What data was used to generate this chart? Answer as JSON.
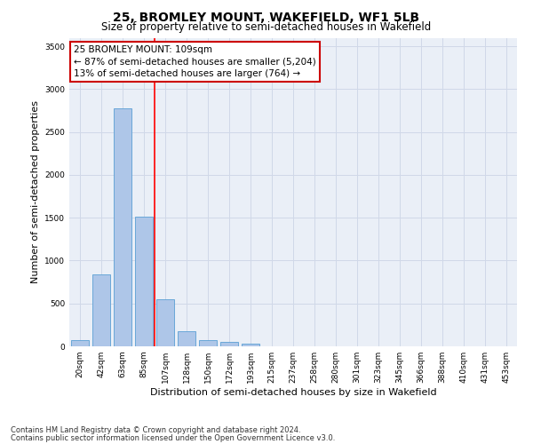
{
  "title": "25, BROMLEY MOUNT, WAKEFIELD, WF1 5LB",
  "subtitle": "Size of property relative to semi-detached houses in Wakefield",
  "xlabel": "Distribution of semi-detached houses by size in Wakefield",
  "ylabel": "Number of semi-detached properties",
  "footnote1": "Contains HM Land Registry data © Crown copyright and database right 2024.",
  "footnote2": "Contains public sector information licensed under the Open Government Licence v3.0.",
  "categories": [
    "20sqm",
    "42sqm",
    "63sqm",
    "85sqm",
    "107sqm",
    "128sqm",
    "150sqm",
    "172sqm",
    "193sqm",
    "215sqm",
    "237sqm",
    "258sqm",
    "280sqm",
    "301sqm",
    "323sqm",
    "345sqm",
    "366sqm",
    "388sqm",
    "410sqm",
    "431sqm",
    "453sqm"
  ],
  "values": [
    70,
    840,
    2780,
    1510,
    550,
    175,
    75,
    50,
    30,
    0,
    0,
    0,
    0,
    0,
    0,
    0,
    0,
    0,
    0,
    0,
    0
  ],
  "bar_color": "#aec6e8",
  "bar_edge_color": "#5a9fd4",
  "grid_color": "#d0d8e8",
  "annotation_line1": "25 BROMLEY MOUNT: 109sqm",
  "annotation_line2": "← 87% of semi-detached houses are smaller (5,204)",
  "annotation_line3": "13% of semi-detached houses are larger (764) →",
  "annotation_box_color": "#ffffff",
  "annotation_box_edge_color": "#cc0000",
  "property_line_index": 4,
  "ylim": [
    0,
    3600
  ],
  "yticks": [
    0,
    500,
    1000,
    1500,
    2000,
    2500,
    3000,
    3500
  ],
  "background_color": "#eaeff7",
  "title_fontsize": 10,
  "subtitle_fontsize": 8.5,
  "tick_fontsize": 6.5,
  "ylabel_fontsize": 8,
  "xlabel_fontsize": 8,
  "annotation_fontsize": 7.5,
  "footnote_fontsize": 6
}
